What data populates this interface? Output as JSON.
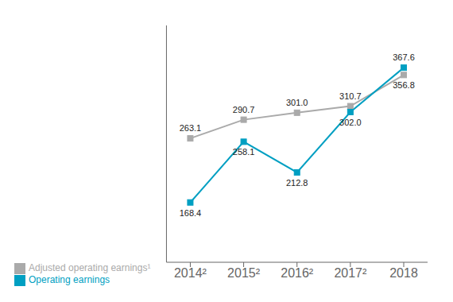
{
  "chart_data": {
    "type": "line",
    "categories": [
      "2014²",
      "2015²",
      "2016²",
      "2017²",
      "2018"
    ],
    "series": [
      {
        "name": "Adjusted operating earnings¹",
        "color": "#aaaaaa",
        "marker": "square",
        "values": [
          263.1,
          290.7,
          301.0,
          310.7,
          356.8
        ],
        "value_labels": [
          "263.1",
          "290.7",
          "301.0",
          "310.7",
          "356.8"
        ]
      },
      {
        "name": "Operating earnings",
        "color": "#009fc2",
        "marker": "square",
        "values": [
          168.4,
          258.1,
          212.8,
          302.0,
          367.6
        ],
        "value_labels": [
          "168.4",
          "258.1",
          "212.8",
          "302.0",
          "367.6"
        ]
      }
    ],
    "ylim": [
      80,
      430
    ],
    "data_labels": true,
    "tick_labels": "x",
    "legend": "lower left",
    "grid": false
  }
}
